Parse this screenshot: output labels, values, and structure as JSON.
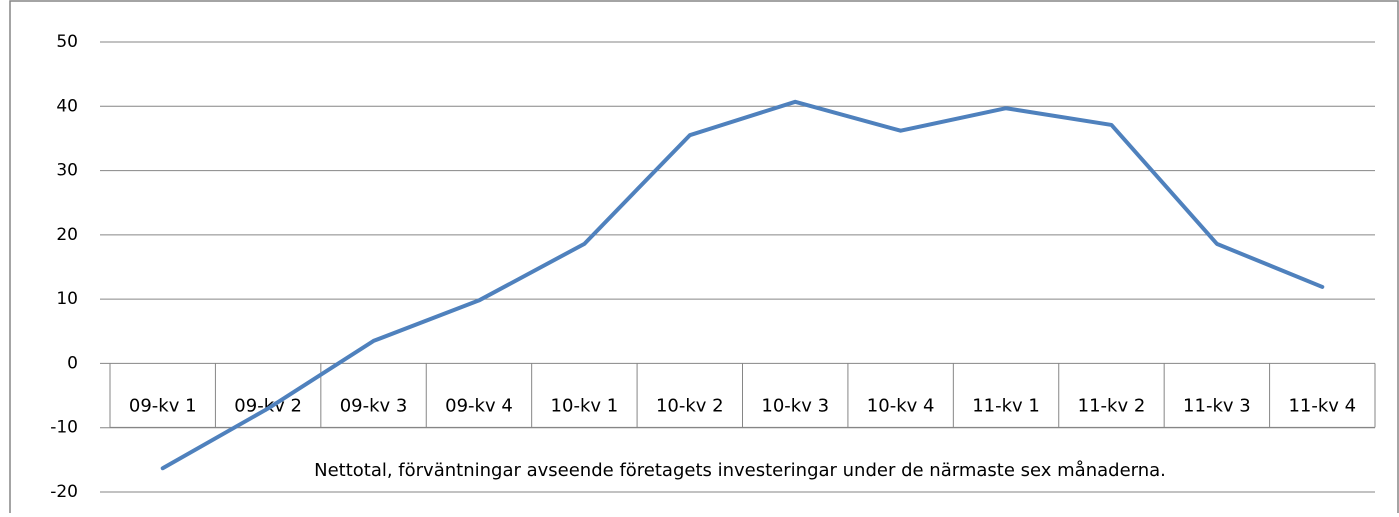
{
  "chart_data": {
    "type": "line",
    "categories": [
      "09-kv 1",
      "09-kv 2",
      "09-kv 3",
      "09-kv 4",
      "10-kv 1",
      "10-kv 2",
      "10-kv 3",
      "10-kv 4",
      "11-kv 1",
      "11-kv 2",
      "11-kv 3",
      "11-kv 4"
    ],
    "values": [
      -16.3,
      -7,
      3.5,
      9.8,
      18.6,
      35.5,
      40.7,
      36.2,
      39.7,
      37.1,
      18.6,
      11.9
    ],
    "color": "#4f81bd",
    "ylim": [
      -20,
      50
    ],
    "yticks": [
      -20,
      -10,
      0,
      10,
      20,
      30,
      40,
      50
    ],
    "grid": true,
    "annotation": "Nettotal, förväntningar avseende företagets investeringar under de närmaste sex månaderna."
  }
}
